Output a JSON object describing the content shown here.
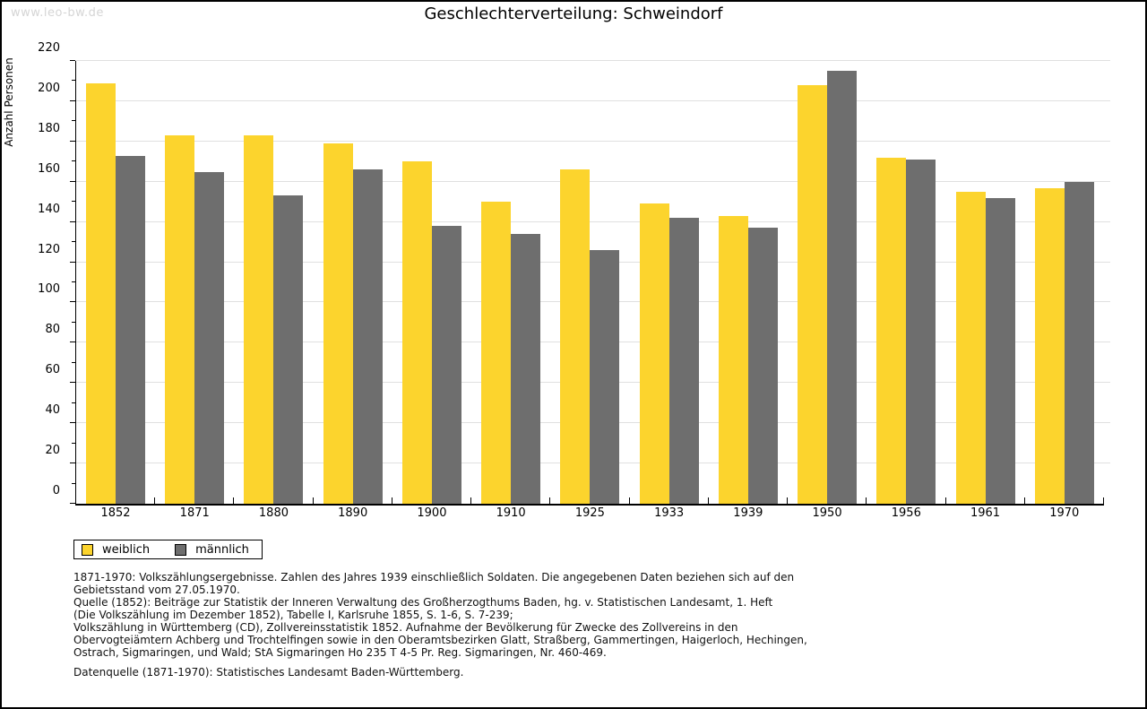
{
  "watermark": "www.leo-bw.de",
  "title": "Geschlechterverteilung: Schweindorf",
  "chart_data": {
    "type": "bar",
    "title": "Geschlechterverteilung: Schweindorf",
    "xlabel": "",
    "ylabel": "Anzahl Personen",
    "ylim": [
      0,
      220
    ],
    "ytick_major_step": 20,
    "ytick_minor_step": 10,
    "grid": true,
    "legend_position": "bottom-left",
    "categories": [
      "1852",
      "1871",
      "1880",
      "1890",
      "1900",
      "1910",
      "1925",
      "1933",
      "1939",
      "1950",
      "1956",
      "1961",
      "1970"
    ],
    "series": [
      {
        "name": "weiblich",
        "color": "#fcd42d",
        "values": [
          209,
          183,
          183,
          179,
          170,
          150,
          166,
          149,
          143,
          208,
          172,
          155,
          157
        ]
      },
      {
        "name": "männlich",
        "color": "#6e6e6e",
        "values": [
          173,
          165,
          153,
          166,
          138,
          134,
          126,
          142,
          137,
          215,
          171,
          152,
          160
        ]
      }
    ]
  },
  "legend": {
    "items": [
      {
        "label": "weiblich",
        "color": "#fcd42d"
      },
      {
        "label": "männlich",
        "color": "#6e6e6e"
      }
    ]
  },
  "footnotes": {
    "lines": [
      "1871-1970: Volkszählungsergebnisse. Zahlen des Jahres 1939 einschließlich Soldaten. Die angegebenen Daten beziehen sich auf den",
      "Gebietsstand vom 27.05.1970.",
      "Quelle (1852): Beiträge zur Statistik der Inneren Verwaltung des Großherzogthums Baden, hg. v. Statistischen Landesamt, 1. Heft",
      "(Die Volkszählung im Dezember 1852), Tabelle I, Karlsruhe 1855, S. 1-6, S. 7-239;",
      "Volkszählung in Württemberg (CD), Zollvereinsstatistik 1852. Aufnahme der Bevölkerung für Zwecke des Zollvereins in den",
      "Obervogteiämtern Achberg und Trochtelfingen sowie in den Oberamtsbezirken Glatt, Straßberg, Gammertingen, Haigerloch, Hechingen,",
      "Ostrach, Sigmaringen, und Wald; StA Sigmaringen Ho 235 T 4-5 Pr. Reg. Sigmaringen, Nr. 460-469."
    ],
    "datasource": "Datenquelle (1871-1970): Statistisches Landesamt Baden-Württemberg."
  }
}
